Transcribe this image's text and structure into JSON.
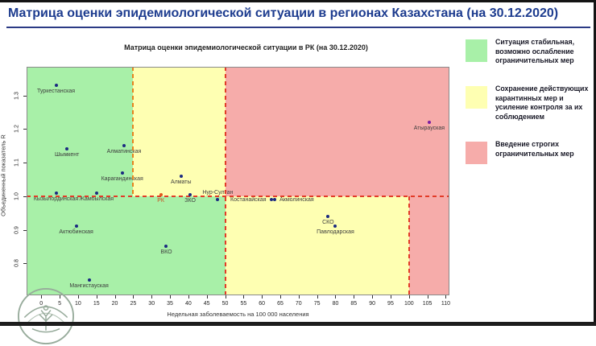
{
  "header": {
    "title": "Матрица оценки эпидемиологической ситуации в регионах Казахстана (на 30.12.2020)"
  },
  "chart_data": {
    "type": "scatter",
    "title": "Матрица оценки эпидемиологической ситуации в РК (на 30.12.2020)",
    "xlabel": "Недельная заболеваемость на 100 000 населения",
    "ylabel": "Объединенный показатель R",
    "xlim": [
      -4,
      111
    ],
    "ylim": [
      0.705,
      1.385
    ],
    "x_ticks": [
      0,
      5,
      10,
      15,
      20,
      25,
      30,
      35,
      40,
      45,
      50,
      55,
      60,
      65,
      70,
      75,
      80,
      85,
      90,
      95,
      100,
      105,
      110
    ],
    "y_ticks": [
      "0.8",
      "0.9",
      "1.0",
      "1.1",
      "1.2",
      "1.3"
    ],
    "grid": false,
    "legend_position": "right",
    "zone_colors": {
      "green": "#a8f0a8",
      "yellow": "#feffb2",
      "red": "#f6acaa"
    },
    "zones": [
      {
        "name": "zone-green-high-r",
        "x1": -4,
        "x2": 25,
        "y1": 1.0,
        "y2": 1.385,
        "color": "#a8f0a8"
      },
      {
        "name": "zone-yellow-high-r",
        "x1": 25,
        "x2": 50,
        "y1": 1.0,
        "y2": 1.385,
        "color": "#feffb2"
      },
      {
        "name": "zone-red-high-r",
        "x1": 50,
        "x2": 111,
        "y1": 1.0,
        "y2": 1.385,
        "color": "#f6acaa"
      },
      {
        "name": "zone-green-low-r",
        "x1": -4,
        "x2": 50,
        "y1": 0.705,
        "y2": 1.0,
        "color": "#a8f0a8"
      },
      {
        "name": "zone-yellow-low-r",
        "x1": 50,
        "x2": 100,
        "y1": 0.705,
        "y2": 1.0,
        "color": "#feffb2"
      },
      {
        "name": "zone-red-low-r",
        "x1": 100,
        "x2": 111,
        "y1": 0.705,
        "y2": 1.0,
        "color": "#f6acaa"
      }
    ],
    "boundary_lines": [
      {
        "name": "threshold-r-1.0",
        "x1": -4,
        "x2": 111,
        "y1": 1.0,
        "y2": 1.0,
        "color": "#e23b28"
      },
      {
        "name": "threshold-incidence-25",
        "x1": 25,
        "x2": 25,
        "y1": 1.0,
        "y2": 1.385,
        "color": "#e6821e"
      },
      {
        "name": "threshold-incidence-50",
        "x1": 50,
        "x2": 50,
        "y1": 0.705,
        "y2": 1.385,
        "color": "#e23b28"
      },
      {
        "name": "threshold-incidence-100",
        "x1": 100,
        "x2": 100,
        "y1": 0.705,
        "y2": 1.0,
        "color": "#e23b28"
      }
    ],
    "point_color_default": "#1b2a80",
    "points": [
      {
        "name": "Туркестанская",
        "x": 4,
        "y": 1.33
      },
      {
        "name": "Шымкент",
        "x": 7,
        "y": 1.14
      },
      {
        "name": "Алматинская",
        "x": 22.5,
        "y": 1.15
      },
      {
        "name": "Карагандинская",
        "x": 22,
        "y": 1.07
      },
      {
        "name": "Кызылординская",
        "x": 4,
        "y": 1.01
      },
      {
        "name": "Жамбылская",
        "x": 15,
        "y": 1.01
      },
      {
        "name": "РК",
        "x": 32.5,
        "y": 1.005,
        "color": "#e0581e",
        "label_color": "#c94e1d"
      },
      {
        "name": "Алматы",
        "x": 38,
        "y": 1.06
      },
      {
        "name": "ЗКО",
        "x": 40.5,
        "y": 1.005
      },
      {
        "name": "Нур-Султан",
        "x": 48,
        "y": 0.99,
        "label_pos": "above"
      },
      {
        "name": "Костанайская",
        "x": 62.5,
        "y": 0.99,
        "label_pos": "left"
      },
      {
        "name": "Акмолинская",
        "x": 63.5,
        "y": 0.99,
        "label_pos": "right"
      },
      {
        "name": "Актюбинская",
        "x": 9.5,
        "y": 0.91
      },
      {
        "name": "ВКО",
        "x": 34,
        "y": 0.85
      },
      {
        "name": "Мангистауская",
        "x": 13,
        "y": 0.75
      },
      {
        "name": "СКО",
        "x": 78,
        "y": 0.94
      },
      {
        "name": "Павлодарская",
        "x": 80,
        "y": 0.91
      },
      {
        "name": "Атырауская",
        "x": 105.5,
        "y": 1.22,
        "color": "#7b1fa2"
      }
    ]
  },
  "legend": {
    "items": [
      {
        "name": "legend-green",
        "color": "#a8f0a8",
        "text": "Ситуация стабильная, возможно ослабление ограничительных мер"
      },
      {
        "name": "legend-yellow",
        "color": "#feffb2",
        "text": "Сохранение действующих карантинных мер и усиление контроля за их соблюдением"
      },
      {
        "name": "legend-red",
        "color": "#f6acaa",
        "text": "Введение строгих ограничительных мер"
      }
    ]
  }
}
